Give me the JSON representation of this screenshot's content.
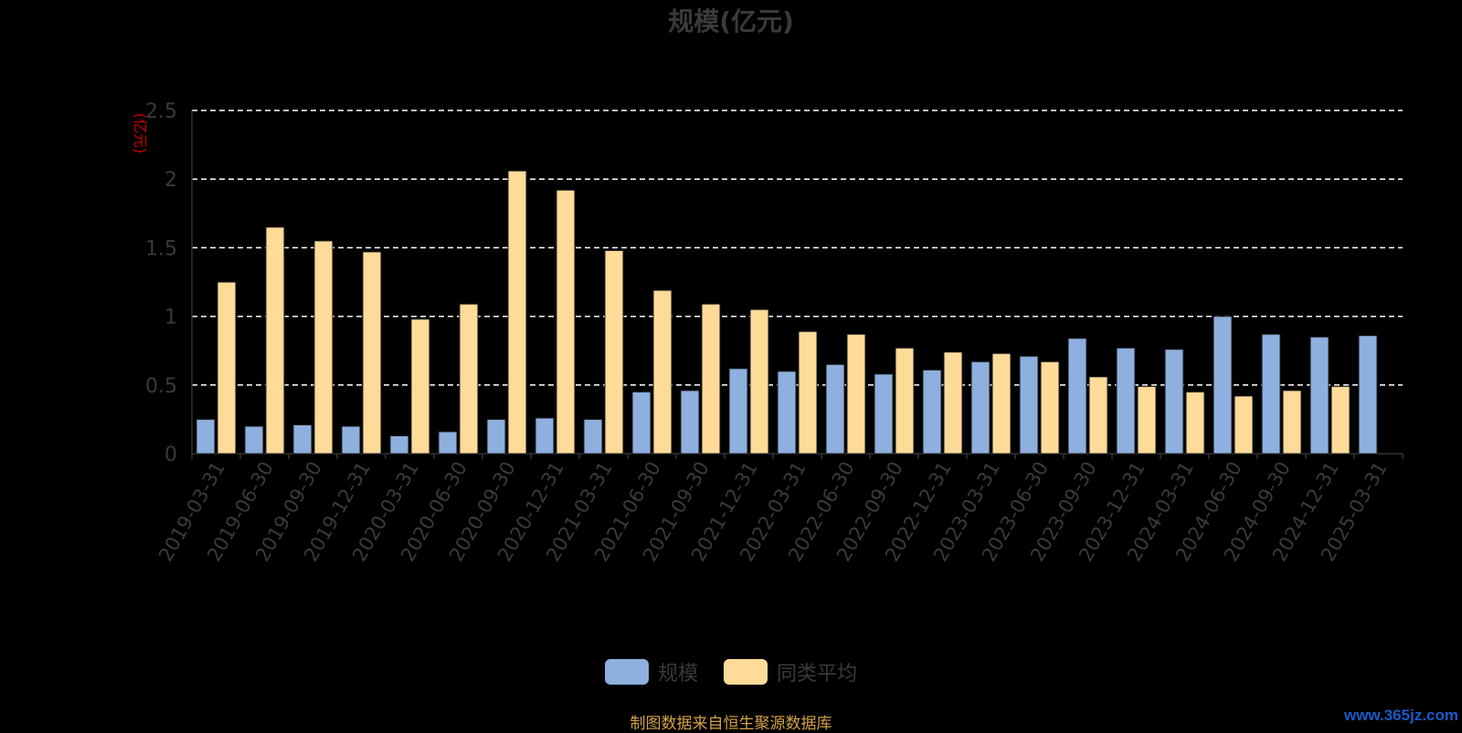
{
  "title": "规模(亿元)",
  "legend": {
    "series1_label": "规模",
    "series2_label": "同类平均"
  },
  "source_note": "制图数据来自恒生聚源数据库",
  "watermark": "www.365jz.com",
  "colors": {
    "series1": "#8eb0de",
    "series2": "#ffdb99",
    "axis_text": "#3a3a3a",
    "unit_label": "#cc0000",
    "grid": "#ffffff"
  },
  "chart_data": {
    "type": "bar",
    "title": "规模(亿元)",
    "ylabel": "(亿元)",
    "xlabel": "",
    "ylim": [
      0,
      2.5
    ],
    "yticks": [
      0,
      0.5,
      1,
      1.5,
      2,
      2.5
    ],
    "ytick_labels": [
      "0",
      "0.5",
      "1",
      "1.5",
      "2",
      "2.5"
    ],
    "grid": true,
    "legend_position": "bottom",
    "categories": [
      "2019-03-31",
      "2019-06-30",
      "2019-09-30",
      "2019-12-31",
      "2020-03-31",
      "2020-06-30",
      "2020-09-30",
      "2020-12-31",
      "2021-03-31",
      "2021-06-30",
      "2021-09-30",
      "2021-12-31",
      "2022-03-31",
      "2022-06-30",
      "2022-09-30",
      "2022-12-31",
      "2023-03-31",
      "2023-06-30",
      "2023-09-30",
      "2023-12-31",
      "2024-03-31",
      "2024-06-30",
      "2024-09-30",
      "2024-12-31",
      "2025-03-31"
    ],
    "series": [
      {
        "name": "规模",
        "values": [
          0.25,
          0.2,
          0.21,
          0.2,
          0.13,
          0.16,
          0.25,
          0.26,
          0.25,
          0.45,
          0.46,
          0.62,
          0.6,
          0.65,
          0.58,
          0.61,
          0.67,
          0.71,
          0.84,
          0.77,
          0.76,
          1.0,
          0.87,
          0.85,
          0.86
        ]
      },
      {
        "name": "同类平均",
        "values": [
          1.25,
          1.65,
          1.55,
          1.47,
          0.98,
          1.09,
          2.06,
          1.92,
          1.48,
          1.19,
          1.09,
          1.05,
          0.89,
          0.87,
          0.77,
          0.74,
          0.73,
          0.67,
          0.56,
          0.49,
          0.45,
          0.42,
          0.46,
          0.49,
          null
        ]
      }
    ]
  }
}
